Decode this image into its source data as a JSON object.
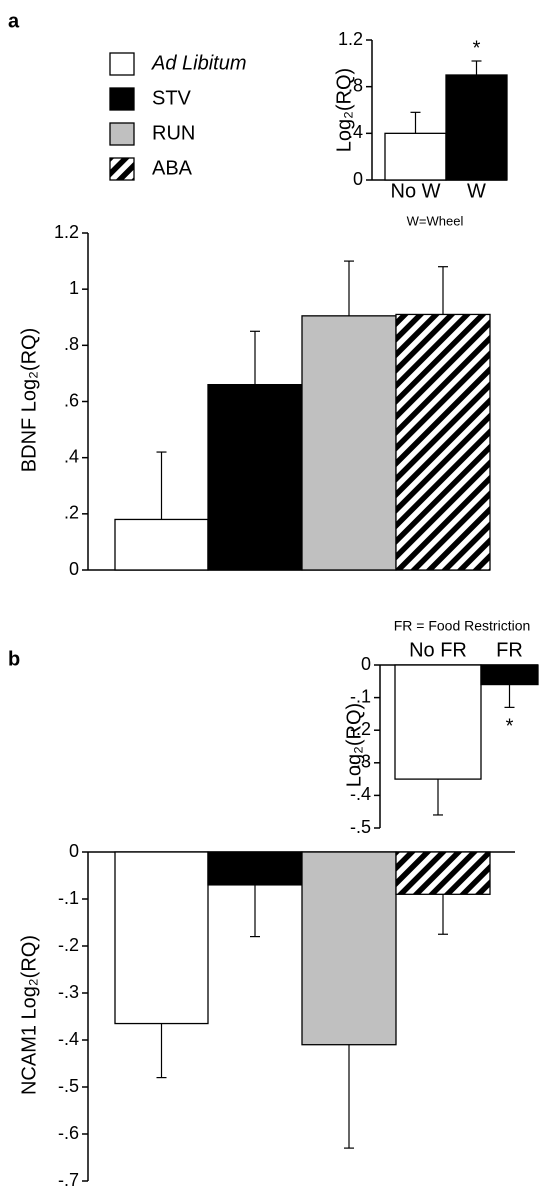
{
  "chart_data": [
    {
      "type": "bar",
      "ylabel": "Log₂(RQ)",
      "xlabel": "W=Wheel",
      "categories": [
        "No W",
        "W"
      ],
      "values": [
        0.4,
        0.9
      ],
      "errors": [
        0.18,
        0.12
      ],
      "colors": [
        "#ffffff",
        "#000000"
      ],
      "ylim": [
        0,
        1.2
      ],
      "yticks": [
        0,
        {
          "value": 0.4,
          "label": ".4"
        },
        {
          "value": 0.8,
          "label": ".8"
        },
        1.2
      ],
      "annotations": [
        {
          "text": "*",
          "at": "W"
        }
      ]
    },
    {
      "type": "bar",
      "panel": "a",
      "ylabel": "BDNF Log₂(RQ)",
      "series": [
        {
          "name": "Ad Libitum",
          "color": "#ffffff",
          "values": [
            0.18
          ],
          "errors": [
            0.24
          ]
        },
        {
          "name": "STV",
          "color": "#000000",
          "values": [
            0.66
          ],
          "errors": [
            0.19
          ]
        },
        {
          "name": "RUN",
          "color": "#c0c0c0",
          "values": [
            0.905
          ],
          "errors": [
            0.195
          ]
        },
        {
          "name": "ABA",
          "color": "#000000",
          "hatch": true,
          "values": [
            0.91
          ],
          "errors": [
            0.17
          ]
        }
      ],
      "ylim": [
        0,
        1.2
      ],
      "yticks": [
        0,
        {
          "value": 0.2,
          "label": ".2"
        },
        {
          "value": 0.4,
          "label": ".4"
        },
        {
          "value": 0.6,
          "label": ".6"
        },
        {
          "value": 0.8,
          "label": ".8"
        },
        1,
        1.2
      ]
    },
    {
      "type": "bar",
      "title": "FR = Food Restriction",
      "ylabel": "Log₂(RQ)",
      "categories": [
        "No FR",
        "FR"
      ],
      "values": [
        -0.35,
        -0.06
      ],
      "errors": [
        0.11,
        0.07
      ],
      "colors": [
        "#ffffff",
        "#000000"
      ],
      "ylim": [
        -0.5,
        0
      ],
      "yticks": [
        0,
        {
          "value": -0.1,
          "label": "-.1"
        },
        {
          "value": -0.2,
          "label": "-.2"
        },
        {
          "value": -0.3,
          "label": "-.3"
        },
        {
          "value": -0.4,
          "label": "-.4"
        },
        {
          "value": -0.5,
          "label": "-.5"
        }
      ],
      "annotations": [
        {
          "text": "*",
          "at": "FR"
        }
      ]
    },
    {
      "type": "bar",
      "panel": "b",
      "ylabel": "NCAM1 Log₂(RQ)",
      "values": [
        -0.365,
        -0.07,
        -0.41,
        -0.09
      ],
      "errors": [
        0.115,
        0.11,
        0.22,
        0.085
      ],
      "colors": [
        "#ffffff",
        "#000000",
        "#c0c0c0",
        "#000000"
      ],
      "hatch": [
        false,
        false,
        false,
        true
      ],
      "ylim": [
        -0.7,
        0
      ],
      "yticks": [
        0,
        {
          "value": -0.1,
          "label": "-.1"
        },
        {
          "value": -0.2,
          "label": "-.2"
        },
        {
          "value": -0.3,
          "label": "-.3"
        },
        {
          "value": -0.4,
          "label": "-.4"
        },
        {
          "value": -0.5,
          "label": "-.5"
        },
        {
          "value": -0.6,
          "label": "-.6"
        },
        {
          "value": -0.7,
          "label": "-.7"
        }
      ]
    }
  ]
}
